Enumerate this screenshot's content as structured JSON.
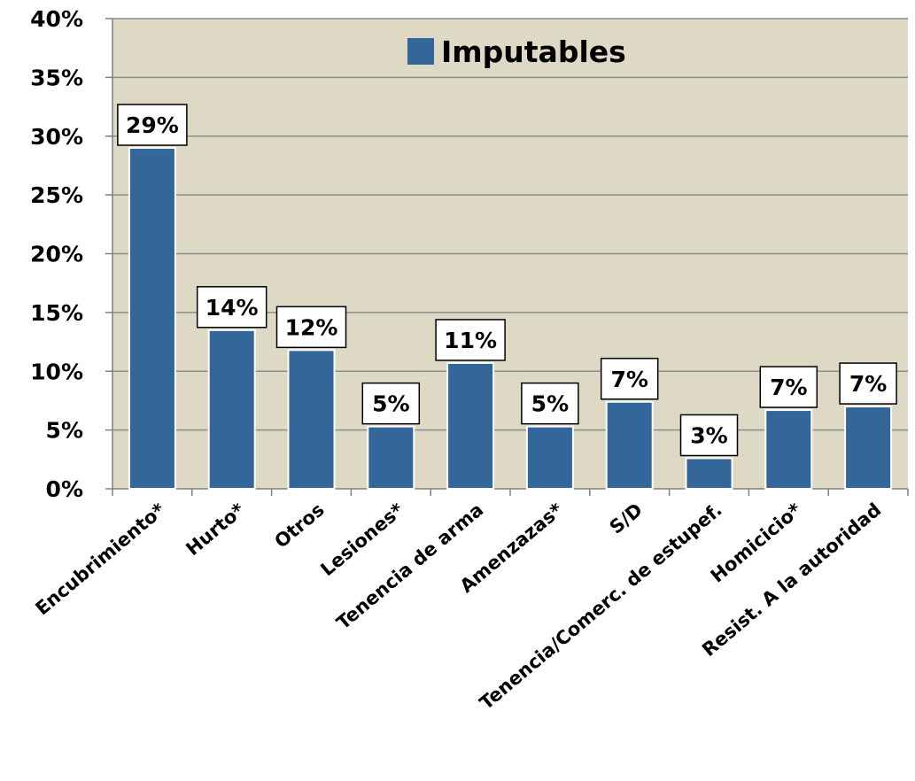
{
  "chart_data": {
    "type": "bar",
    "legend": {
      "label": "Imputables",
      "position": "top-center"
    },
    "categories": [
      "Encubrimiento*",
      "Hurto*",
      "Otros",
      "Lesiones*",
      "Tenencia de arma",
      "Amenzazas*",
      "S/D",
      "Tenencia/Comerc. de estupef.",
      "Homicicio*",
      "Resist. A la autoridad"
    ],
    "series": [
      {
        "name": "Imputables",
        "values": [
          29,
          13.5,
          11.8,
          5.3,
          10.7,
          5.3,
          7.4,
          2.6,
          6.7,
          7
        ],
        "data_labels": [
          "29%",
          "14%",
          "12%",
          "5%",
          "11%",
          "5%",
          "7%",
          "3%",
          "7%",
          "7%"
        ]
      }
    ],
    "y_ticks": [
      "0%",
      "5%",
      "10%",
      "15%",
      "20%",
      "25%",
      "30%",
      "35%",
      "40%"
    ],
    "ylim": [
      0,
      40
    ],
    "grid": true,
    "colors": {
      "bar": "#336699",
      "plot_background": "#ddd9c4",
      "gridline": "#8c8c8c"
    }
  }
}
